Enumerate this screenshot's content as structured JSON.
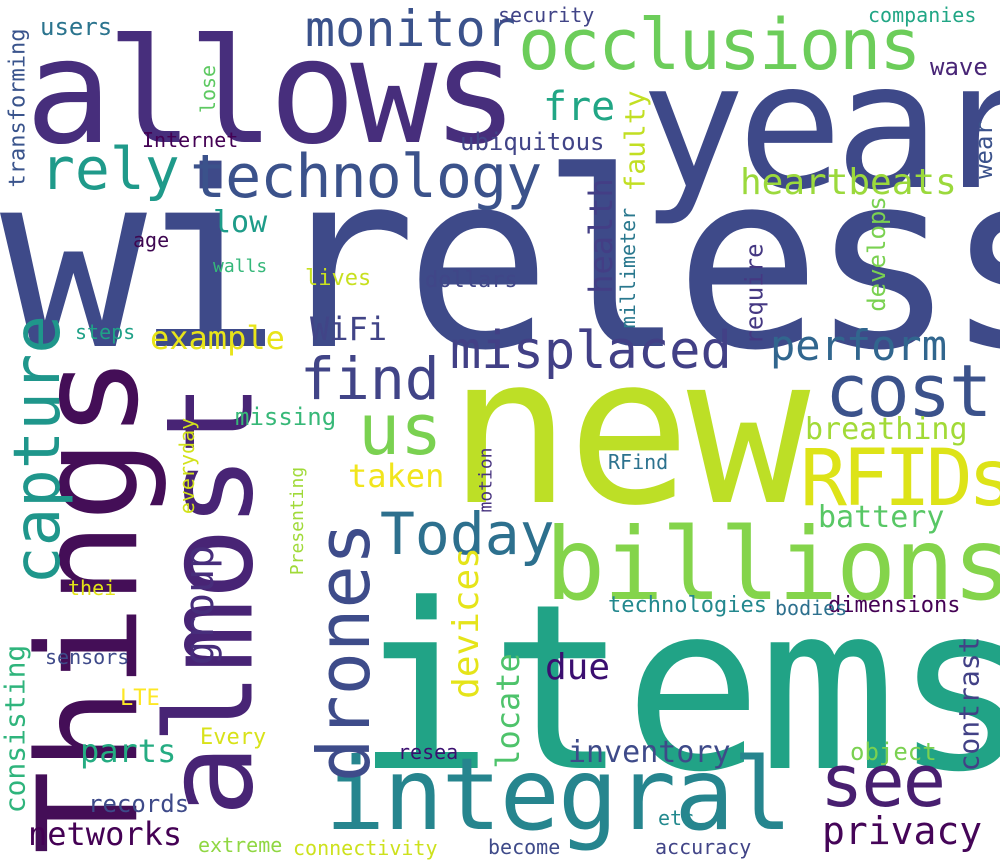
{
  "words": [
    {
      "id": "wireless",
      "text": "wireless",
      "color": "#3e4a89"
    },
    {
      "id": "items",
      "text": "items",
      "color": "#21a386"
    },
    {
      "id": "new",
      "text": "new",
      "color": "#bddf26"
    },
    {
      "id": "allows",
      "text": "allows",
      "color": "#472e7c"
    },
    {
      "id": "year",
      "text": "year",
      "color": "#3e4989"
    },
    {
      "id": "things",
      "text": "Things",
      "color": "#440e57"
    },
    {
      "id": "almost",
      "text": "almost",
      "color": "#482475"
    },
    {
      "id": "billions",
      "text": "billions",
      "color": "#84d44b"
    },
    {
      "id": "integral",
      "text": "integral",
      "color": "#26858e"
    },
    {
      "id": "occlusions",
      "text": "occlusions",
      "color": "#6ccd5a"
    },
    {
      "id": "technology",
      "text": "technology",
      "color": "#3b528b"
    },
    {
      "id": "rely",
      "text": "rely",
      "color": "#1f9a8a"
    },
    {
      "id": "drones",
      "text": "drones",
      "color": "#3e4c8a"
    },
    {
      "id": "capture",
      "text": "capture",
      "color": "#1f968b"
    },
    {
      "id": "monitor",
      "text": "monitor",
      "color": "#3b528b"
    },
    {
      "id": "misplaced",
      "text": "misplaced",
      "color": "#424086"
    },
    {
      "id": "cost",
      "text": "cost",
      "color": "#3b528b"
    },
    {
      "id": "rfids",
      "text": "RFIDs",
      "color": "#dde318"
    },
    {
      "id": "find",
      "text": "find",
      "color": "#414487"
    },
    {
      "id": "us",
      "text": "us",
      "color": "#7ad151"
    },
    {
      "id": "see",
      "text": "see",
      "color": "#481f70"
    },
    {
      "id": "today",
      "text": "Today",
      "color": "#2d708e"
    },
    {
      "id": "privacy",
      "text": "privacy",
      "color": "#450558"
    },
    {
      "id": "networks",
      "text": "networks",
      "color": "#440154"
    },
    {
      "id": "fre",
      "text": "fre",
      "color": "#21a685"
    },
    {
      "id": "heartbeats",
      "text": "heartbeats",
      "color": "#9bd93c"
    },
    {
      "id": "perform",
      "text": "perform",
      "color": "#31668e"
    },
    {
      "id": "breathing",
      "text": "breathing",
      "color": "#a2da37"
    },
    {
      "id": "battery",
      "text": "battery",
      "color": "#58c765"
    },
    {
      "id": "group",
      "text": "group",
      "color": "#472d7b"
    },
    {
      "id": "devices",
      "text": "devices",
      "color": "#e5e419"
    },
    {
      "id": "locate",
      "text": "locate",
      "color": "#4ec36b"
    },
    {
      "id": "health",
      "text": "health",
      "color": "#433e85"
    },
    {
      "id": "faulty",
      "text": "faulty",
      "color": "#c2df23"
    },
    {
      "id": "wifi",
      "text": "WiFi",
      "color": "#414487"
    },
    {
      "id": "example",
      "text": "example",
      "color": "#e8e419"
    },
    {
      "id": "low",
      "text": "low",
      "color": "#1e9c89"
    },
    {
      "id": "parts",
      "text": "parts",
      "color": "#25ac82"
    },
    {
      "id": "inventory",
      "text": "inventory",
      "color": "#3e4a89"
    },
    {
      "id": "due",
      "text": "due",
      "color": "#3b0f70"
    },
    {
      "id": "contrast",
      "text": "contrast",
      "color": "#424186"
    },
    {
      "id": "consisting",
      "text": "consisting",
      "color": "#2fb47c"
    },
    {
      "id": "taken",
      "text": "taken",
      "color": "#f1e51d"
    },
    {
      "id": "technologies",
      "text": "technologies",
      "color": "#23888e"
    },
    {
      "id": "dimensions",
      "text": "dimensions",
      "color": "#440154"
    },
    {
      "id": "ubiquitous",
      "text": "ubiquitous",
      "color": "#414487"
    },
    {
      "id": "users",
      "text": "users",
      "color": "#2b748e"
    },
    {
      "id": "security",
      "text": "security",
      "color": "#414487"
    },
    {
      "id": "companies",
      "text": "companies",
      "color": "#21a685"
    },
    {
      "id": "wave",
      "text": "wave",
      "color": "#482576"
    },
    {
      "id": "wear",
      "text": "wear",
      "color": "#3b528b"
    },
    {
      "id": "develops",
      "text": "develops",
      "color": "#7ad151"
    },
    {
      "id": "require",
      "text": "require",
      "color": "#453882"
    },
    {
      "id": "millimeter",
      "text": "millimeter",
      "color": "#2a788e"
    },
    {
      "id": "dollars",
      "text": "dollars",
      "color": "#404688"
    },
    {
      "id": "lives",
      "text": "lives",
      "color": "#c8e020"
    },
    {
      "id": "walls",
      "text": "walls",
      "color": "#35b779"
    },
    {
      "id": "age",
      "text": "age",
      "color": "#3e0751"
    },
    {
      "id": "internet",
      "text": "Internet",
      "color": "#440154"
    },
    {
      "id": "transforming",
      "text": "transforming",
      "color": "#3a548c"
    },
    {
      "id": "lose",
      "text": "lose",
      "color": "#5ec962"
    },
    {
      "id": "steps",
      "text": "steps",
      "color": "#1fa187"
    },
    {
      "id": "missing",
      "text": "missing",
      "color": "#37b878"
    },
    {
      "id": "everyday",
      "text": "everyday",
      "color": "#d2e21b"
    },
    {
      "id": "rfind",
      "text": "RFind",
      "color": "#2c728e"
    },
    {
      "id": "motion",
      "text": "motion",
      "color": "#46327e"
    },
    {
      "id": "presenting",
      "text": "Presenting",
      "color": "#a0da39"
    },
    {
      "id": "thei",
      "text": "thei",
      "color": "#e2e418"
    },
    {
      "id": "sensors",
      "text": "sensors",
      "color": "#3e4989"
    },
    {
      "id": "lte",
      "text": "LTE",
      "color": "#fde725"
    },
    {
      "id": "every",
      "text": "Every",
      "color": "#d8e219"
    },
    {
      "id": "records",
      "text": "records",
      "color": "#3e4a89"
    },
    {
      "id": "resea",
      "text": "resea",
      "color": "#3b0f70"
    },
    {
      "id": "object",
      "text": "object",
      "color": "#7ad151"
    },
    {
      "id": "bodies",
      "text": "bodies",
      "color": "#2d708e"
    },
    {
      "id": "extreme",
      "text": "extreme",
      "color": "#90d743"
    },
    {
      "id": "connectivity",
      "text": "connectivity",
      "color": "#cde11d"
    },
    {
      "id": "etc",
      "text": "etc",
      "color": "#23898e"
    },
    {
      "id": "become",
      "text": "become",
      "color": "#3e4a89"
    },
    {
      "id": "accuracy",
      "text": "accuracy",
      "color": "#414487"
    }
  ]
}
